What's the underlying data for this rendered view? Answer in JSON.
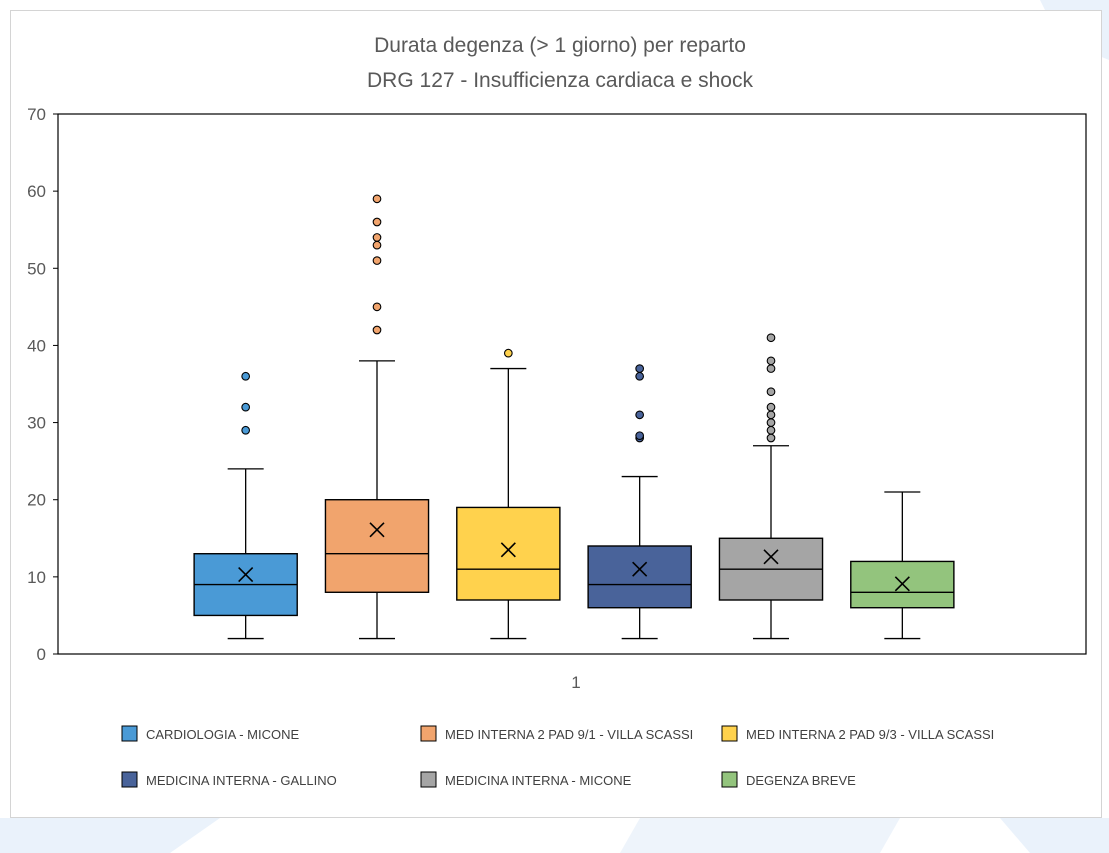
{
  "chart_data": {
    "type": "box",
    "title": "Durata degenza (> 1 giorno) per reparto",
    "subtitle": "DRG 127 - Insufficienza  cardiaca e shock",
    "xlabel": "",
    "ylabel": "",
    "ylim": [
      0,
      70
    ],
    "yticks": [
      0,
      10,
      20,
      30,
      40,
      50,
      60,
      70
    ],
    "categories": [
      "1"
    ],
    "grid": false,
    "legend_position": "bottom",
    "series": [
      {
        "name": "CARDIOLOGIA - MICONE",
        "color": "#4a9ad6",
        "whisker_low": 2,
        "q1": 5,
        "median": 9,
        "q3": 13,
        "whisker_high": 24,
        "mean": 10.3,
        "outliers": [
          29,
          32,
          36
        ]
      },
      {
        "name": "MED INTERNA 2 PAD 9/1 - VILLA SCASSI",
        "color": "#f1a46d",
        "whisker_low": 2,
        "q1": 8,
        "median": 13,
        "q3": 20,
        "whisker_high": 38,
        "mean": 16.1,
        "outliers": [
          42,
          45,
          51,
          53,
          54,
          56,
          59
        ]
      },
      {
        "name": "MED INTERNA 2 PAD 9/3 - VILLA SCASSI",
        "color": "#ffd24d",
        "whisker_low": 2,
        "q1": 7,
        "median": 11,
        "q3": 19,
        "whisker_high": 37,
        "mean": 13.5,
        "outliers": [
          39
        ]
      },
      {
        "name": "MEDICINA INTERNA - GALLINO",
        "color": "#49639a",
        "whisker_low": 2,
        "q1": 6,
        "median": 9,
        "q3": 14,
        "whisker_high": 23,
        "mean": 11,
        "outliers": [
          28,
          28.3,
          31,
          36,
          37
        ]
      },
      {
        "name": "MEDICINA INTERNA - MICONE",
        "color": "#a5a5a5",
        "whisker_low": 2,
        "q1": 7,
        "median": 11,
        "q3": 15,
        "whisker_high": 27,
        "mean": 12.6,
        "outliers": [
          28,
          29,
          30,
          31,
          32,
          34,
          37,
          38,
          41
        ]
      },
      {
        "name": "DEGENZA BREVE",
        "color": "#93c47d",
        "whisker_low": 2,
        "q1": 6,
        "median": 8,
        "q3": 12,
        "whisker_high": 21,
        "mean": 9.1,
        "outliers": []
      }
    ]
  }
}
